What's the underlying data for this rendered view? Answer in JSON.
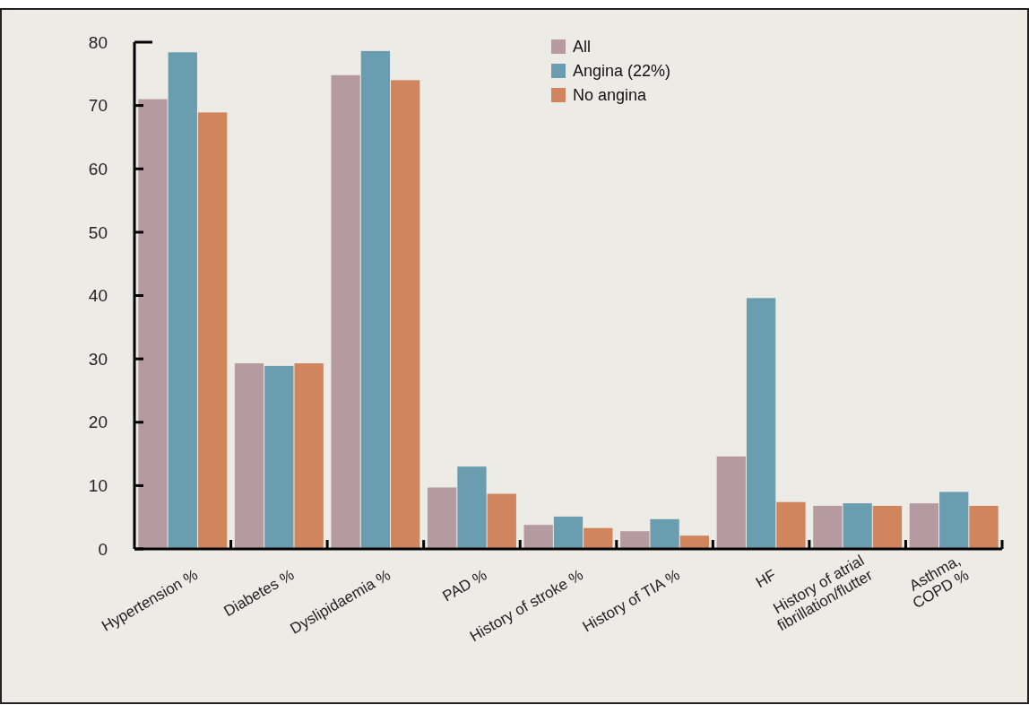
{
  "chart_data": {
    "type": "bar",
    "categories": [
      "Hypertension %",
      "Diabetes %",
      "Dyslipidaemia %",
      "PAD %",
      "History of stroke %",
      "History of TIA %",
      "HF",
      "History of atrial\nfibrillation/flutter",
      "Asthma,\nCOPD %"
    ],
    "series": [
      {
        "name": "All",
        "color": "#b59a9f",
        "values": [
          71.0,
          29.3,
          74.8,
          9.7,
          3.8,
          2.8,
          14.6,
          6.8,
          7.2
        ]
      },
      {
        "name": "Angina (22%)",
        "color": "#6b9db0",
        "values": [
          78.4,
          28.9,
          78.6,
          13.0,
          5.1,
          4.7,
          39.6,
          7.2,
          9.0
        ]
      },
      {
        "name": "No angina",
        "color": "#d0855c",
        "values": [
          68.9,
          29.3,
          74.0,
          8.7,
          3.3,
          2.1,
          7.4,
          6.8,
          6.8
        ]
      }
    ],
    "ylim": [
      0,
      80
    ],
    "yticks": [
      0,
      10,
      20,
      30,
      40,
      50,
      60,
      70,
      80
    ],
    "legend": "top right",
    "grid": false
  }
}
